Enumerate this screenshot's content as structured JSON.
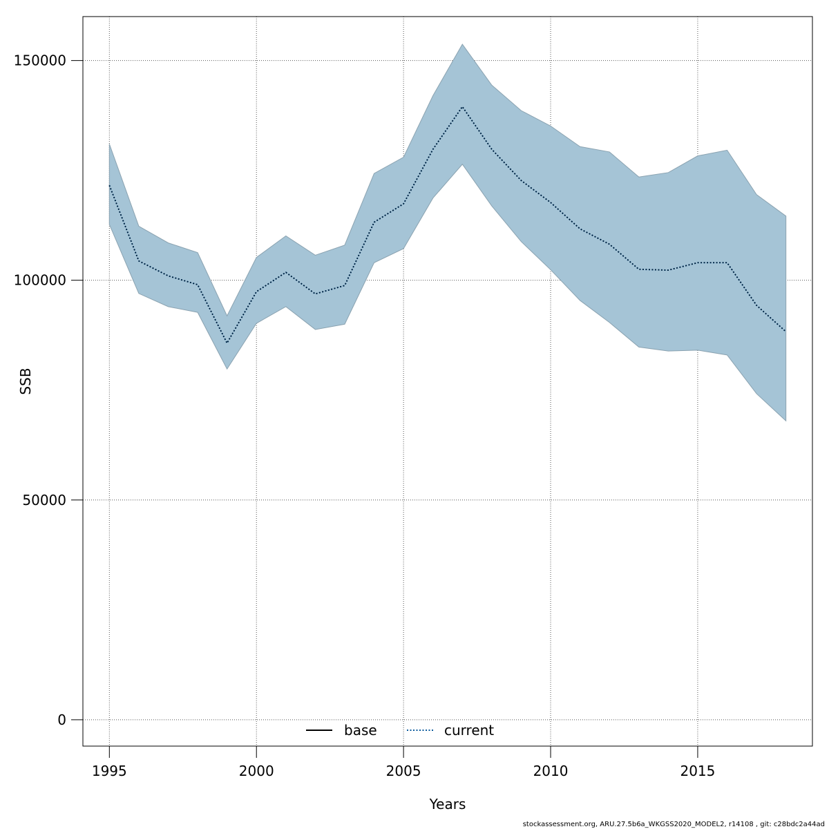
{
  "chart_data": {
    "type": "area",
    "xlabel": "Years",
    "ylabel": "SSB",
    "xlim": [
      1994.1,
      2018.9
    ],
    "ylim": [
      -6000,
      160000
    ],
    "x_ticks": [
      1995,
      2000,
      2005,
      2010,
      2015
    ],
    "y_ticks": [
      0,
      50000,
      100000,
      150000
    ],
    "grid": true,
    "band_color": "#a5c4d6",
    "band_edge_color": "#8aa2b0",
    "years": [
      1995,
      1996,
      1997,
      1998,
      1999,
      2000,
      2001,
      2002,
      2003,
      2004,
      2005,
      2006,
      2007,
      2008,
      2009,
      2010,
      2011,
      2012,
      2013,
      2014,
      2015,
      2016,
      2017,
      2018
    ],
    "upper": [
      131000,
      112300,
      108500,
      106300,
      91900,
      105200,
      110100,
      105700,
      108000,
      124300,
      128000,
      142000,
      153700,
      144400,
      138600,
      135100,
      130400,
      129200,
      123500,
      124500,
      128300,
      129600,
      119500,
      114600
    ],
    "lower": [
      112700,
      97000,
      94000,
      92700,
      79800,
      90200,
      94000,
      88800,
      90000,
      104000,
      107200,
      118700,
      126400,
      116900,
      108800,
      102400,
      95400,
      90400,
      84800,
      83900,
      84100,
      83000,
      74200,
      68000
    ],
    "series": [
      {
        "name": "base",
        "values": [
          121600,
          104400,
          101000,
          99000,
          85700,
          97400,
          101800,
          96900,
          98800,
          113200,
          117400,
          129800,
          139500,
          129800,
          122700,
          117700,
          111700,
          108200,
          102500,
          102300,
          104000,
          104000,
          94300,
          88300
        ],
        "color": "#000000",
        "dash": "solid"
      },
      {
        "name": "current",
        "values": [
          121600,
          104400,
          101000,
          99000,
          85700,
          97400,
          101800,
          96900,
          98800,
          113200,
          117400,
          129800,
          139500,
          129800,
          122700,
          117700,
          111700,
          108200,
          102500,
          102300,
          104000,
          104000,
          94300,
          88300
        ],
        "color": "#0a5a9c",
        "dash": "dotted"
      }
    ],
    "legend": {
      "position": "bottom-center",
      "items": [
        "base",
        "current"
      ]
    }
  },
  "footer": "stockassessment.org, ARU.27.5b6a_WKGSS2020_MODEL2, r14108 , git: c28bdc2a44ad"
}
